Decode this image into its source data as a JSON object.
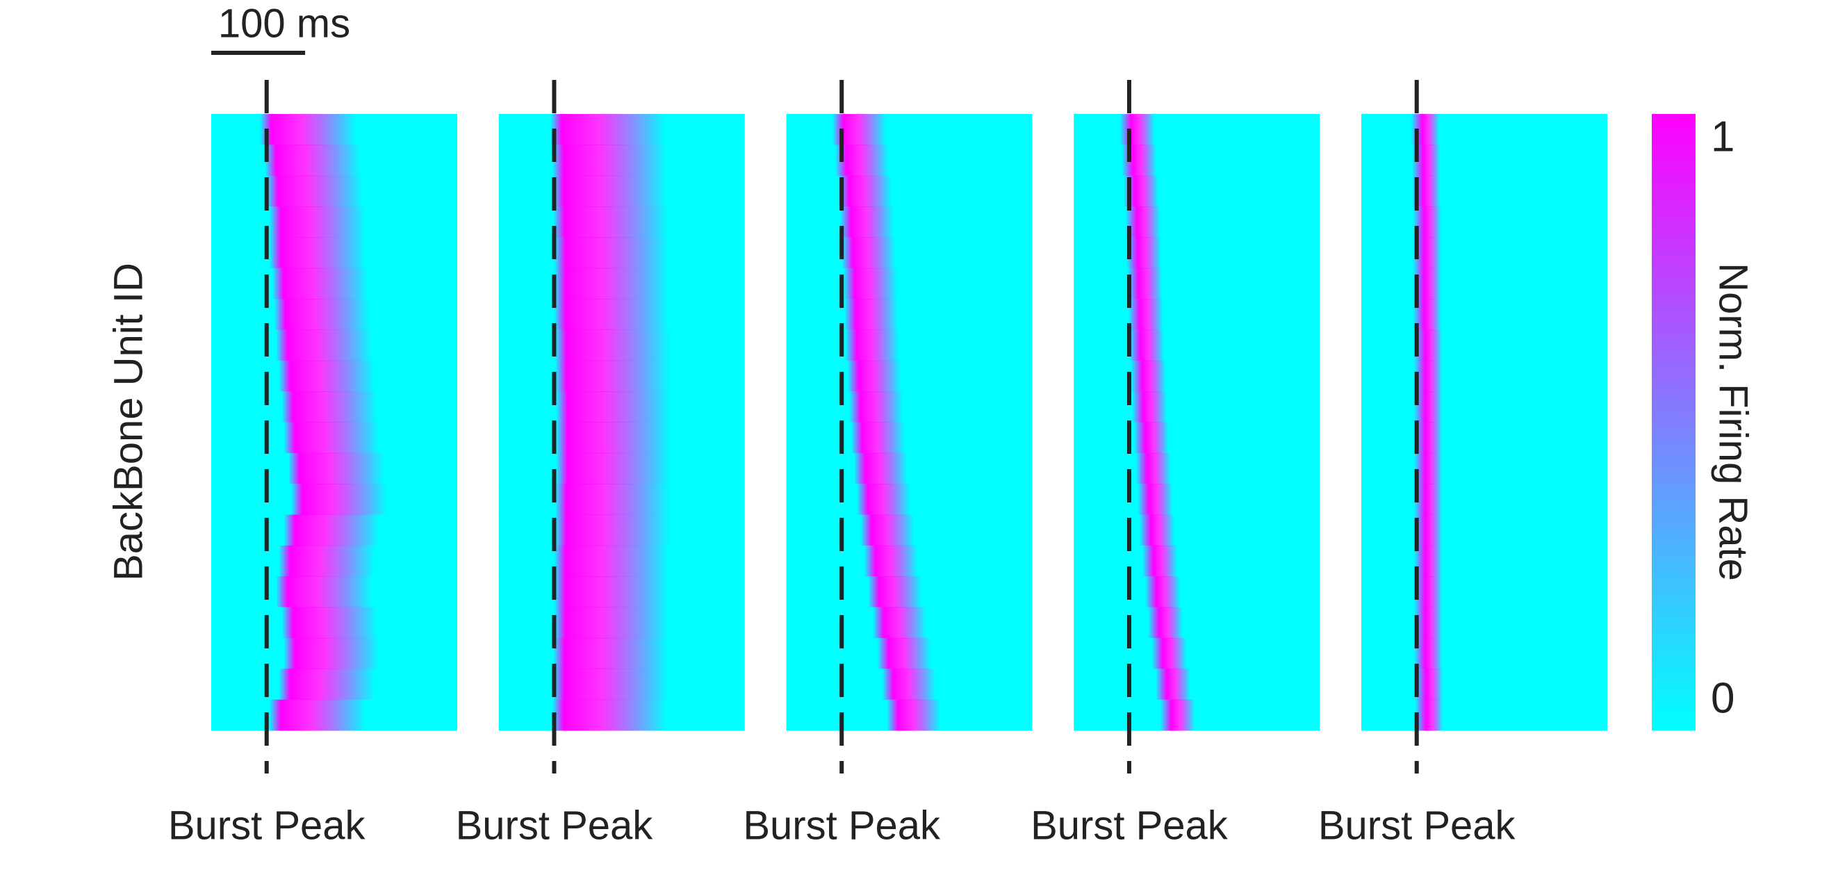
{
  "chart_data": {
    "type": "heatmap",
    "y_label": "BackBone Unit ID",
    "xlim": [
      -59,
      203
    ],
    "event_ms": 0,
    "scale_bar": {
      "value": 100,
      "label": "100 ms"
    },
    "colormap": [
      "#00ffff",
      "#ff00ff"
    ],
    "colorbar_label": "Norm. Firing Rate",
    "clim": [
      0,
      1
    ],
    "cticks": [
      0,
      1
    ],
    "panels": [
      {
        "x_label": "Burst Peak",
        "decay_ms": 90,
        "peak_ms": [
          5,
          10,
          12,
          15,
          15,
          18,
          20,
          22,
          25,
          28,
          30,
          35,
          38,
          30,
          25,
          22,
          28,
          30,
          25,
          15
        ]
      },
      {
        "x_label": "Burst Peak",
        "decay_ms": 110,
        "peak_ms": [
          8,
          10,
          10,
          11,
          12,
          12,
          12,
          13,
          13,
          14,
          14,
          14,
          13,
          13,
          12,
          12,
          12,
          11,
          11,
          10
        ]
      },
      {
        "x_label": "Burst Peak",
        "decay_ms": 45,
        "peak_ms": [
          2,
          5,
          8,
          10,
          12,
          14,
          15,
          16,
          18,
          20,
          22,
          25,
          28,
          32,
          36,
          40,
          45,
          50,
          55,
          60
        ]
      },
      {
        "x_label": "Burst Peak",
        "decay_ms": 25,
        "peak_ms": [
          2,
          4,
          6,
          8,
          9,
          10,
          11,
          12,
          14,
          15,
          17,
          19,
          21,
          23,
          26,
          29,
          32,
          36,
          40,
          45
        ]
      },
      {
        "x_label": "Burst Peak",
        "decay_ms": 18,
        "peak_ms": [
          6,
          7,
          7,
          8,
          8,
          8,
          8,
          9,
          9,
          9,
          9,
          9,
          9,
          9,
          9,
          9,
          9,
          9,
          10,
          10
        ]
      }
    ]
  }
}
